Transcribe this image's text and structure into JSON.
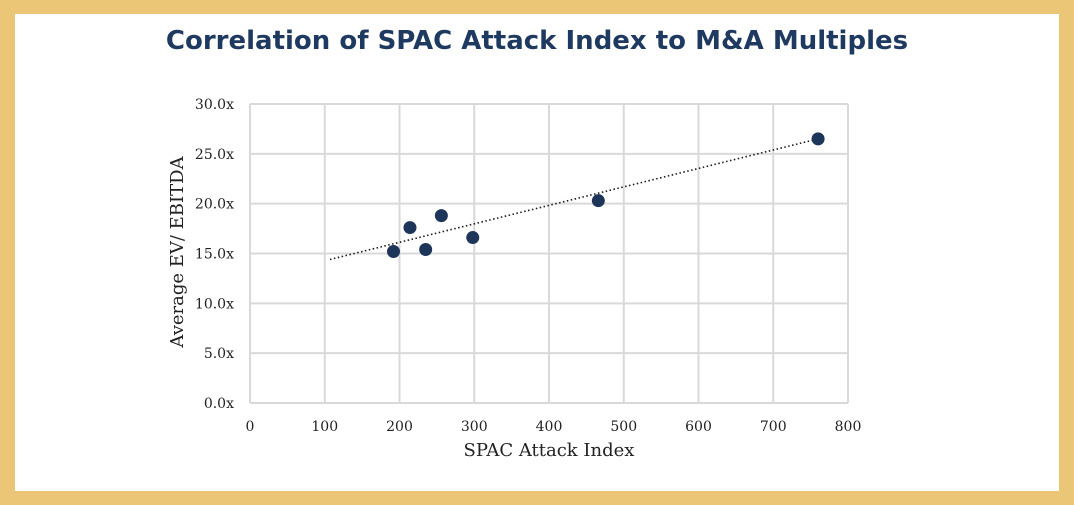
{
  "colors": {
    "background_frame": "#ebc676",
    "panel": "#ffffff",
    "title": "#1f3a60",
    "points": "#1c3558",
    "grid": "#d9d9d9",
    "trendline": "#1a1a1a"
  },
  "chart_data": {
    "type": "scatter",
    "title": "Correlation of SPAC Attack Index to M&A Multiples",
    "xlabel": "SPAC Attack Index",
    "ylabel": "Average EV/ EBITDA",
    "xlim": [
      0,
      800
    ],
    "ylim": [
      0,
      30
    ],
    "x_ticks": [
      "0",
      "100",
      "200",
      "300",
      "400",
      "500",
      "600",
      "700",
      "800"
    ],
    "y_ticks": [
      "0.0x",
      "5.0x",
      "10.0x",
      "15.0x",
      "20.0x",
      "25.0x",
      "30.0x"
    ],
    "grid": true,
    "legend": false,
    "points": [
      {
        "x": 192,
        "y": 15.2
      },
      {
        "x": 214,
        "y": 17.6
      },
      {
        "x": 235,
        "y": 15.4
      },
      {
        "x": 256,
        "y": 18.8
      },
      {
        "x": 298,
        "y": 16.6
      },
      {
        "x": 466,
        "y": 20.3
      },
      {
        "x": 760,
        "y": 26.5
      }
    ],
    "trendline": {
      "type": "linear",
      "style": "dotted",
      "x_start": 107,
      "y_start": 14.4,
      "x_end": 760,
      "y_end": 26.5
    }
  }
}
